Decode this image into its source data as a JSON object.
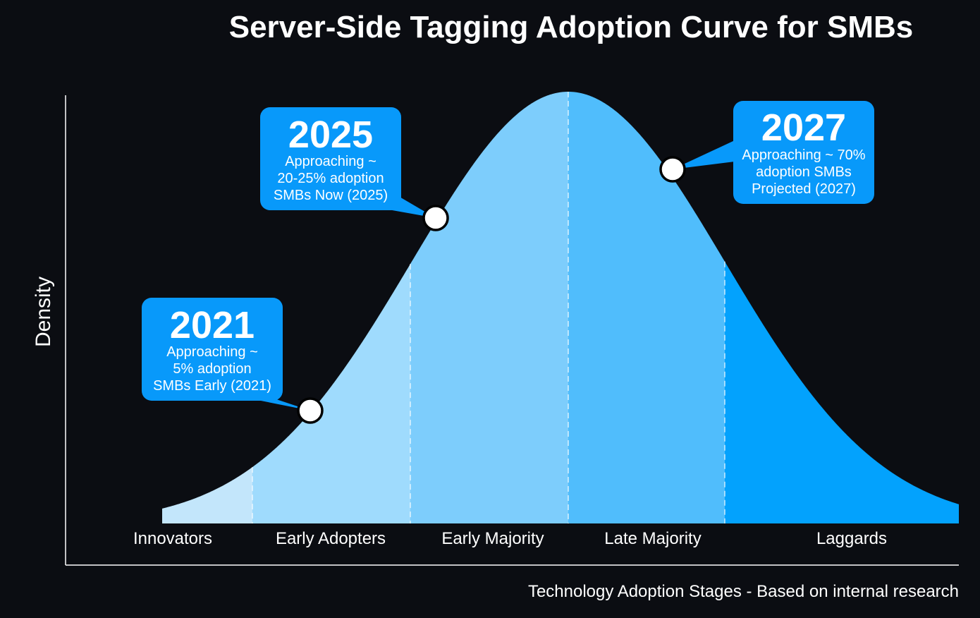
{
  "chart_data": {
    "type": "area",
    "title": "Server-Side Tagging Adoption Curve for SMBs",
    "xlabel": "Technology Adoption Stages - Based on internal research",
    "ylabel": "Density",
    "distribution": "normal",
    "stages": [
      {
        "name": "Innovators",
        "color": "#c3e6fb"
      },
      {
        "name": "Early Adopters",
        "color": "#9fdbfd"
      },
      {
        "name": "Early Majority",
        "color": "#7dcdfc"
      },
      {
        "name": "Late Majority",
        "color": "#50bdfc"
      },
      {
        "name": "Laggards",
        "color": "#03a2fd"
      }
    ],
    "annotations": [
      {
        "year": "2021",
        "lines": [
          "Approaching ~",
          "5% adoption",
          "SMBs Early (2021)"
        ]
      },
      {
        "year": "2025",
        "lines": [
          "Approaching ~",
          "20-25% adoption",
          "SMBs Now (2025)"
        ]
      },
      {
        "year": "2027",
        "lines": [
          "Approaching ~ 70%",
          "adoption SMBs",
          "Projected (2027)"
        ]
      }
    ],
    "grid": false,
    "legend": "none"
  },
  "colors": {
    "background": "#0b0d12",
    "callout": "#0899fa",
    "axis": "#ffffff"
  }
}
